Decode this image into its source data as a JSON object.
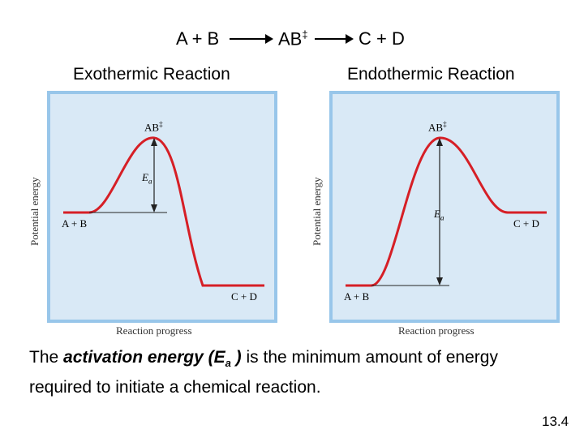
{
  "equation": {
    "reactants": "A + B",
    "transition_state": "AB",
    "transition_mark": "‡",
    "products": "C + D"
  },
  "exothermic": {
    "title": "Exothermic Reaction",
    "y_axis_label": "Potential energy",
    "x_axis_label": "Reaction progress",
    "peak_label": "AB",
    "peak_mark": "‡",
    "ea_label": "E",
    "ea_sub": "a",
    "start_label": "A + B",
    "end_label": "C + D"
  },
  "endothermic": {
    "title": "Endothermic Reaction",
    "y_axis_label": "Potential energy",
    "x_axis_label": "Reaction progress",
    "peak_label": "AB",
    "peak_mark": "‡",
    "ea_label": "E",
    "ea_sub": "a",
    "start_label": "A + B",
    "end_label": "C + D"
  },
  "caption": {
    "prefix": "The ",
    "term": "activation energy (E",
    "term_sub": "a",
    "term_close": " )",
    "rest": " is the minimum amount of energy required to initiate a chemical reaction."
  },
  "page_number": "13.4",
  "colors": {
    "curve": "#d61f26",
    "panel_bg": "#d9e9f6",
    "panel_border": "#98c6ea"
  }
}
